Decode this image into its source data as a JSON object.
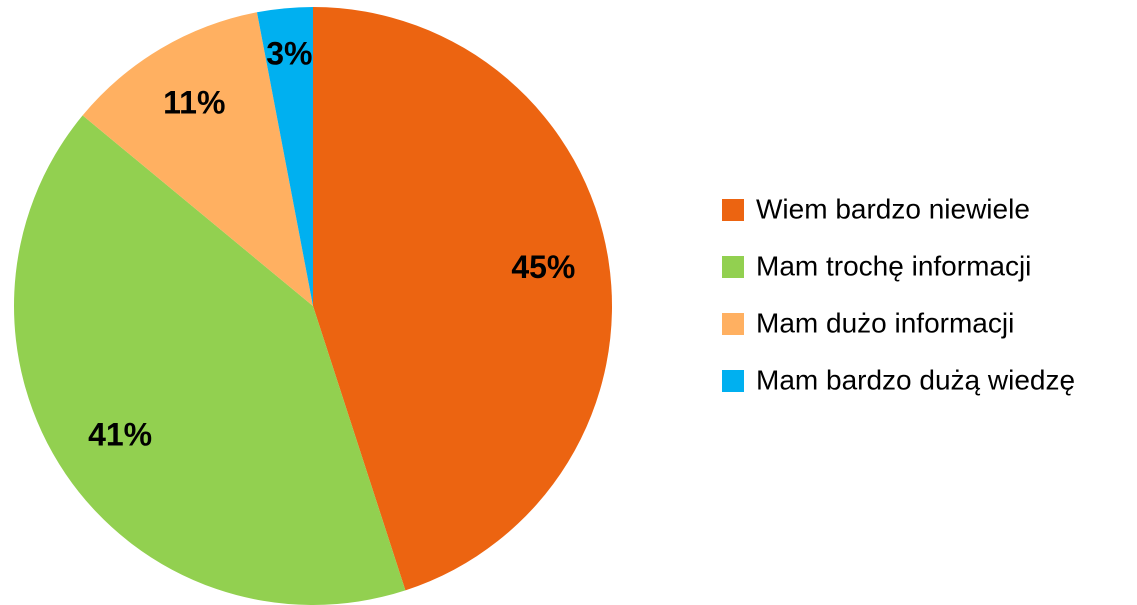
{
  "chart_data": {
    "type": "pie",
    "categories": [
      "Wiem bardzo niewiele",
      "Mam trochę informacji",
      "Mam dużo informacji",
      "Mam bardzo dużą wiedzę"
    ],
    "values": [
      45,
      41,
      11,
      3
    ],
    "value_labels": [
      "45%",
      "41%",
      "11%",
      "3%"
    ],
    "colors": [
      "#ec6411",
      "#92d050",
      "#ffb061",
      "#00b0f0"
    ],
    "legend": "right"
  }
}
